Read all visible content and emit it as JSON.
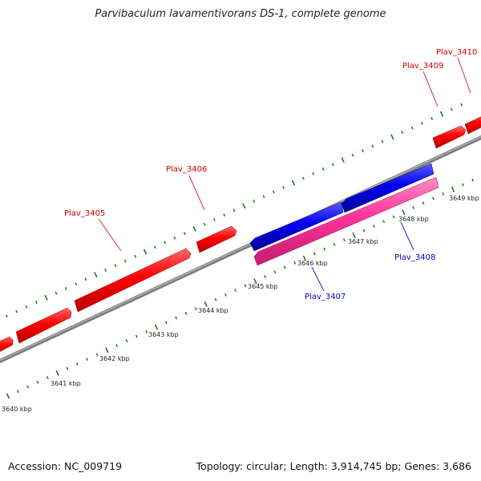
{
  "title": "Parvibaculum lavamentivorans DS-1, complete genome",
  "footer": {
    "accession": "Accession: NC_009719",
    "summary": "Topology: circular; Length: 3,914,745 bp; Genes: 3,686"
  },
  "colors": {
    "forward_gene": "#ff0000",
    "reverse_gene_blue": "#0000ee",
    "reverse_gene_pink": "#ff3399",
    "backbone": "#888888",
    "tick": "#1a7a1a",
    "label_forward": "#cc0000",
    "label_reverse": "#0000cc"
  },
  "genes": [
    {
      "id": "Plav_3405",
      "strand": "+",
      "label_color": "forward",
      "has_label": true
    },
    {
      "id": "Plav_3406",
      "strand": "+",
      "label_color": "forward",
      "has_label": true
    },
    {
      "id": "Plav_3407",
      "strand": "-",
      "label_color": "reverse",
      "has_label": true
    },
    {
      "id": "Plav_3408",
      "strand": "-",
      "label_color": "reverse",
      "has_label": true
    },
    {
      "id": "Plav_3409",
      "strand": "+",
      "label_color": "forward",
      "has_label": true
    },
    {
      "id": "Plav_3410",
      "strand": "+",
      "label_color": "forward",
      "has_label": true
    }
  ],
  "scale_labels": [
    "3640 kbp",
    "3641 kbp",
    "3642 kbp",
    "3643 kbp",
    "3644 kbp",
    "3645 kbp",
    "3646 kbp",
    "3647 kbp",
    "3648 kbp",
    "3649 kbp"
  ]
}
